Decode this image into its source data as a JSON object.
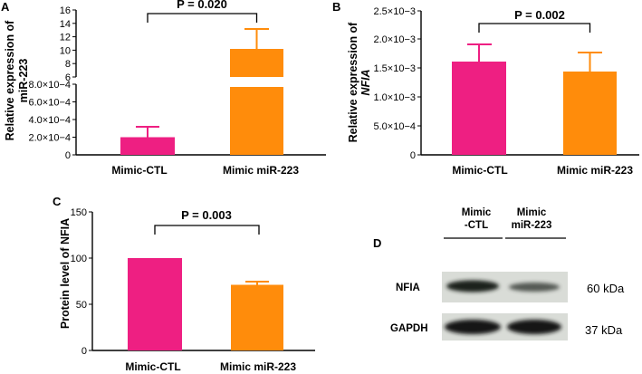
{
  "colors": {
    "ctl": "#ee1f82",
    "mir": "#ff8c0b",
    "axis": "#000000"
  },
  "panels": {
    "a": "A",
    "b": "B",
    "c": "C",
    "d": "D"
  },
  "chart_data": [
    {
      "panel": "A",
      "type": "bar",
      "categories": [
        "Mimic-CTL",
        "Mimic miR-223"
      ],
      "values": [
        0.0002,
        10.1
      ],
      "errors": [
        0.00012,
        3.0
      ],
      "ylabel_lines": [
        "Relative expression of",
        "miR-223"
      ],
      "broken_axis": true,
      "y_lower_range": [
        0,
        0.0008
      ],
      "y_lower_ticks": [
        "0",
        "2.0×10−4",
        "4.0×10−4",
        "6.0×10−4",
        "8.0×10−4"
      ],
      "y_upper_range": [
        6,
        16
      ],
      "y_upper_ticks": [
        "6",
        "8",
        "10",
        "12",
        "14",
        "16"
      ],
      "p_value": "P = 0.020"
    },
    {
      "panel": "B",
      "type": "bar",
      "categories": [
        "Mimic-CTL",
        "Mimic miR-223"
      ],
      "values": [
        0.00162,
        0.00144
      ],
      "errors": [
        0.0003,
        0.00033
      ],
      "ylabel_lines": [
        "Relative expression of",
        "NFIA"
      ],
      "ylim": [
        0,
        0.0025
      ],
      "y_ticks": [
        "0",
        "5.0×10−4",
        "1.0×10−3",
        "1.5×10−3",
        "2.0×10−3",
        "2.5×10−3"
      ],
      "p_value": "P = 0.002"
    },
    {
      "panel": "C",
      "type": "bar",
      "categories": [
        "Mimic-CTL",
        "Mimic miR-223"
      ],
      "values": [
        100,
        73
      ],
      "errors": [
        0,
        3.5
      ],
      "ylabel": "Protein level of NFIA",
      "ylim": [
        0,
        150
      ],
      "y_ticks": [
        "0",
        "50",
        "100",
        "150"
      ],
      "p_value": "P = 0.003"
    }
  ],
  "western": {
    "lanes": [
      "Mimic -CTL",
      "Mimic miR-223"
    ],
    "lane_lines": [
      [
        "Mimic",
        "-CTL"
      ],
      [
        "Mimic",
        "miR-223"
      ]
    ],
    "rows": [
      {
        "label": "NFIA",
        "size": "60 kDa"
      },
      {
        "label": "GAPDH",
        "size": "37 kDa"
      }
    ]
  }
}
